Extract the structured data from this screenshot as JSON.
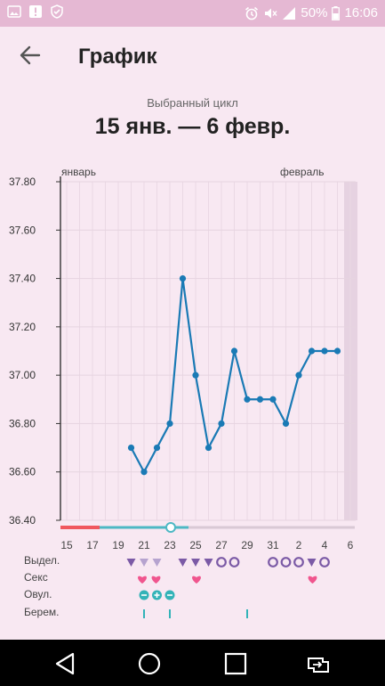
{
  "status_bar": {
    "battery": "50%",
    "time": "16:06"
  },
  "header": {
    "title": "График"
  },
  "cycle": {
    "caption": "Выбранный цикл",
    "range": "15 янв. — 6 февр."
  },
  "chart_data": {
    "type": "line",
    "title": "",
    "xlabel": "",
    "ylabel": "",
    "ylim": [
      36.4,
      37.8
    ],
    "y_ticks": [
      "37.80",
      "37.60",
      "37.40",
      "37.20",
      "37.00",
      "36.80",
      "36.60",
      "36.40"
    ],
    "month_labels": [
      "январь",
      "февраль"
    ],
    "x_tick_labels": [
      "15",
      "17",
      "19",
      "21",
      "23",
      "25",
      "27",
      "29",
      "31",
      "2",
      "4",
      "6"
    ],
    "grid": true,
    "days": [
      "15",
      "16",
      "17",
      "18",
      "19",
      "20",
      "21",
      "22",
      "23",
      "24",
      "25",
      "26",
      "27",
      "28",
      "29",
      "30",
      "31",
      "1",
      "2",
      "3",
      "4",
      "5",
      "6"
    ],
    "series": [
      {
        "values": [
          null,
          null,
          null,
          null,
          null,
          36.7,
          36.6,
          36.7,
          36.8,
          37.4,
          37.0,
          36.7,
          36.8,
          37.1,
          36.9,
          36.9,
          36.9,
          36.8,
          37.0,
          37.1,
          37.1,
          37.1,
          null
        ]
      }
    ],
    "colors": {
      "line": "#1a7ab5",
      "period": "#f0575e",
      "cycle_bar": "#4db8c4",
      "ovulation": "#33b3b8",
      "heart": "#f0558e",
      "discharge": "#7b5aa6",
      "today_highlight": "#e6d2e1"
    },
    "legend_rows": [
      {
        "label": "Выдел.",
        "icon": "discharge-icon"
      },
      {
        "label": "Секс",
        "icon": "heart-icon"
      },
      {
        "label": "Овул.",
        "icon": "ovulation-icon"
      },
      {
        "label": "Берем.",
        "icon": "pregnancy-test-icon"
      }
    ]
  }
}
